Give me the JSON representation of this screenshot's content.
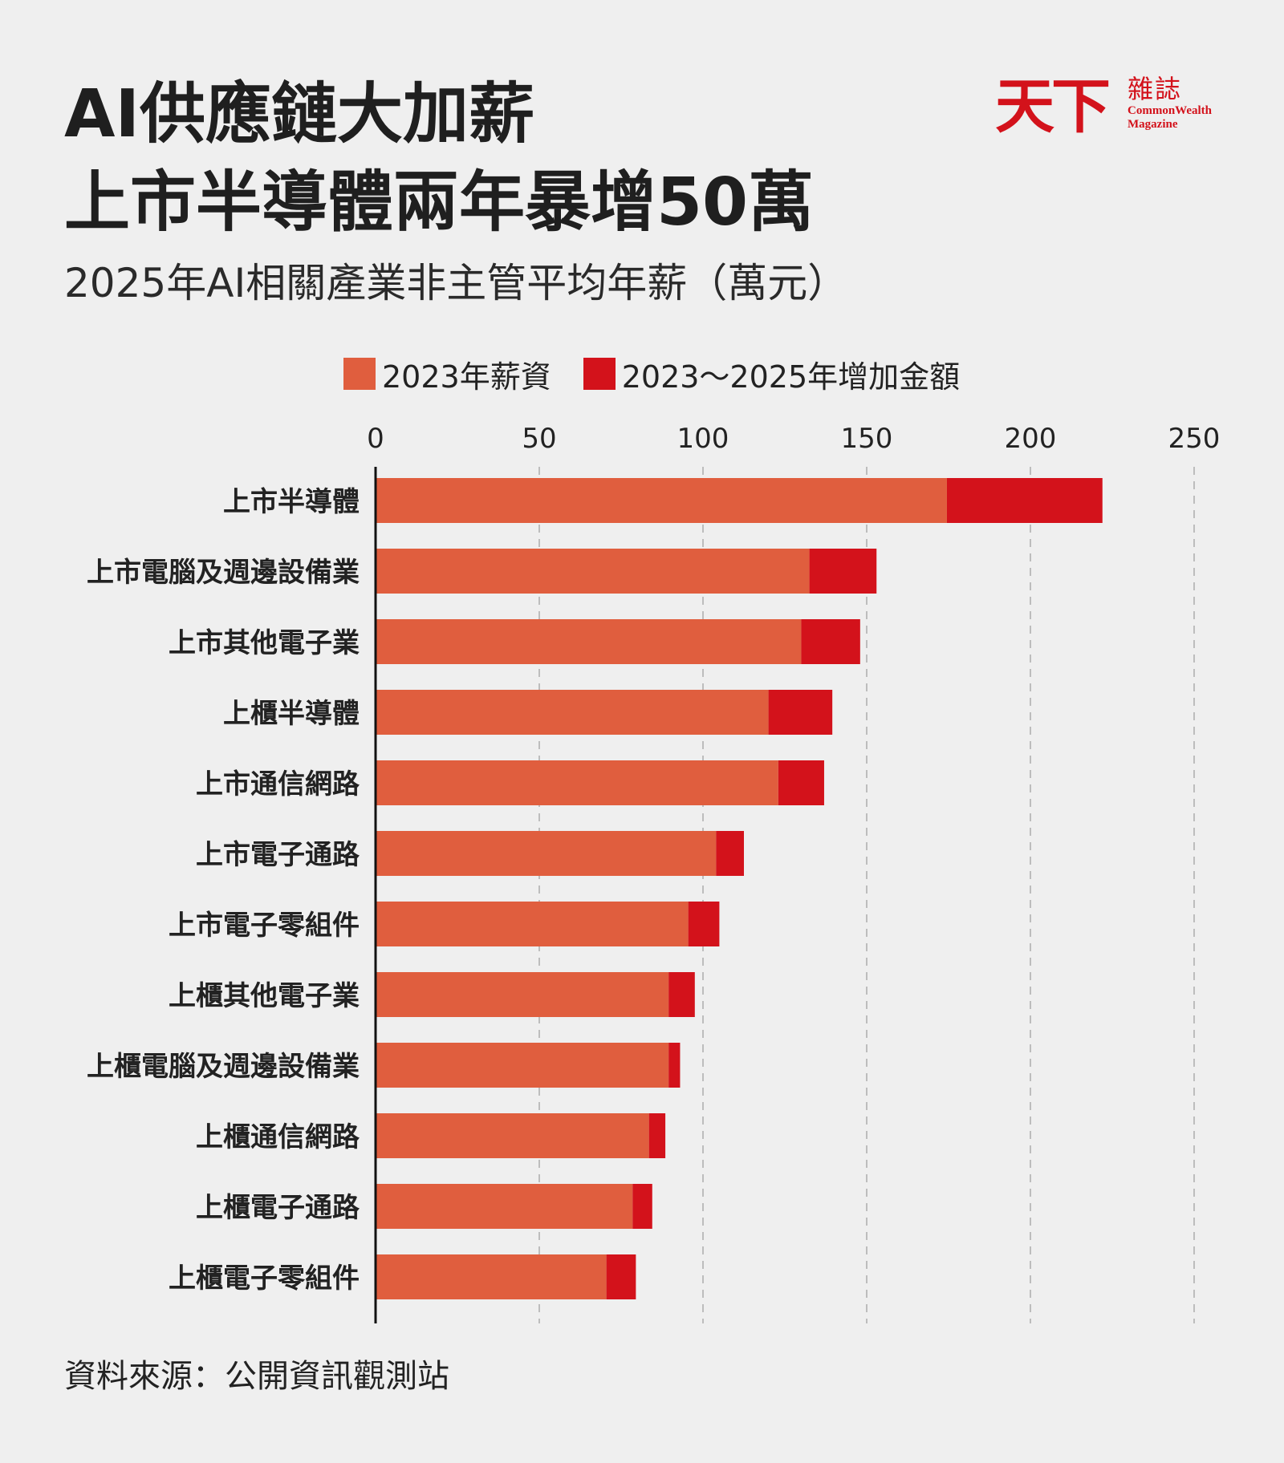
{
  "header": {
    "title_line1": "AI供應鏈大加薪",
    "title_line2": "上市半導體兩年暴增50萬",
    "subtitle": "2025年AI相關產業非主管平均年薪（萬元）"
  },
  "logo": {
    "main": "天下",
    "side_zh": "雜誌",
    "side_en_1": "CommonWealth",
    "side_en_2": "Magazine"
  },
  "source": "資料來源：公開資訊觀測站",
  "colors": {
    "base": "#e05e3e",
    "increase": "#d3121b",
    "grid": "#bdbdbd",
    "axis": "#111111"
  },
  "chart_data": {
    "type": "bar",
    "orientation": "horizontal",
    "stacked": true,
    "title": "2025年AI相關產業非主管平均年薪（萬元）",
    "xlim": [
      0,
      250
    ],
    "xticks": [
      0,
      50,
      100,
      150,
      200,
      250
    ],
    "grid": "vertical dashed",
    "legend_position": "top",
    "categories": [
      "上市半導體",
      "上市電腦及週邊設備業",
      "上市其他電子業",
      "上櫃半導體",
      "上市通信網路",
      "上市電子通路",
      "上市電子零組件",
      "上櫃其他電子業",
      "上櫃電腦及週邊設備業",
      "上櫃通信網路",
      "上櫃電子通路",
      "上櫃電子零組件"
    ],
    "series": [
      {
        "name": "2023年薪資",
        "values": [
          174.5,
          132.5,
          130,
          120,
          123,
          104,
          95.5,
          89.5,
          89.5,
          83.5,
          78.5,
          70.5
        ]
      },
      {
        "name": "2023～2025年增加金額",
        "values": [
          47.5,
          20.5,
          18,
          19.5,
          14,
          8.5,
          9.5,
          8,
          3.5,
          5,
          6,
          9
        ]
      }
    ]
  }
}
